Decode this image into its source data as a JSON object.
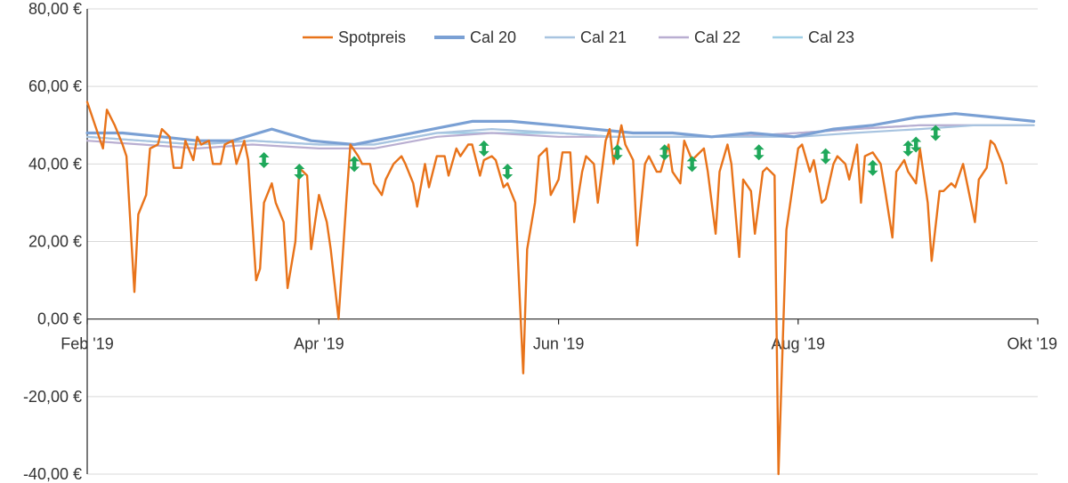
{
  "chart_data": {
    "type": "line",
    "ylim": [
      -40,
      80
    ],
    "xlim": [
      "2019-02-01",
      "2019-10-01"
    ],
    "y_ticks": [
      {
        "value": -40,
        "label": "-40,00 €"
      },
      {
        "value": -20,
        "label": "-20,00 €"
      },
      {
        "value": 0,
        "label": "0,00 €"
      },
      {
        "value": 20,
        "label": "20,00 €"
      },
      {
        "value": 40,
        "label": "40,00 €"
      },
      {
        "value": 60,
        "label": "60,00 €"
      },
      {
        "value": 80,
        "label": "80,00 €"
      }
    ],
    "x_ticks": [
      {
        "date": "2019-02-01",
        "label": "Feb '19"
      },
      {
        "date": "2019-04-01",
        "label": "Apr '19"
      },
      {
        "date": "2019-06-01",
        "label": "Jun '19"
      },
      {
        "date": "2019-08-01",
        "label": "Aug '19"
      },
      {
        "date": "2019-10-01",
        "label": "Okt '19"
      }
    ],
    "grid": "horizontal",
    "legend_position": "top-center",
    "series": [
      {
        "name": "Spotpreis",
        "color": "#e8731a",
        "points": [
          [
            "2019-02-01",
            56
          ],
          [
            "2019-02-03",
            50
          ],
          [
            "2019-02-05",
            44
          ],
          [
            "2019-02-06",
            54
          ],
          [
            "2019-02-08",
            50
          ],
          [
            "2019-02-10",
            45
          ],
          [
            "2019-02-11",
            42
          ],
          [
            "2019-02-13",
            7
          ],
          [
            "2019-02-14",
            27
          ],
          [
            "2019-02-16",
            32
          ],
          [
            "2019-02-17",
            44
          ],
          [
            "2019-02-19",
            45
          ],
          [
            "2019-02-20",
            49
          ],
          [
            "2019-02-22",
            47
          ],
          [
            "2019-02-23",
            39
          ],
          [
            "2019-02-25",
            39
          ],
          [
            "2019-02-26",
            46
          ],
          [
            "2019-02-28",
            41
          ],
          [
            "2019-03-01",
            47
          ],
          [
            "2019-03-02",
            45
          ],
          [
            "2019-03-04",
            46
          ],
          [
            "2019-03-05",
            40
          ],
          [
            "2019-03-07",
            40
          ],
          [
            "2019-03-08",
            45
          ],
          [
            "2019-03-10",
            46
          ],
          [
            "2019-03-11",
            40
          ],
          [
            "2019-03-13",
            46
          ],
          [
            "2019-03-14",
            41
          ],
          [
            "2019-03-16",
            10
          ],
          [
            "2019-03-17",
            13
          ],
          [
            "2019-03-18",
            30
          ],
          [
            "2019-03-20",
            35
          ],
          [
            "2019-03-21",
            30
          ],
          [
            "2019-03-23",
            25
          ],
          [
            "2019-03-24",
            8
          ],
          [
            "2019-03-26",
            20
          ],
          [
            "2019-03-27",
            39
          ],
          [
            "2019-03-29",
            37
          ],
          [
            "2019-03-30",
            18
          ],
          [
            "2019-04-01",
            32
          ],
          [
            "2019-04-03",
            25
          ],
          [
            "2019-04-04",
            18
          ],
          [
            "2019-04-06",
            0
          ],
          [
            "2019-04-08",
            31
          ],
          [
            "2019-04-09",
            45
          ],
          [
            "2019-04-11",
            42
          ],
          [
            "2019-04-12",
            40
          ],
          [
            "2019-04-14",
            40
          ],
          [
            "2019-04-15",
            35
          ],
          [
            "2019-04-17",
            32
          ],
          [
            "2019-04-18",
            36
          ],
          [
            "2019-04-20",
            40
          ],
          [
            "2019-04-22",
            42
          ],
          [
            "2019-04-23",
            40
          ],
          [
            "2019-04-25",
            35
          ],
          [
            "2019-04-26",
            29
          ],
          [
            "2019-04-28",
            40
          ],
          [
            "2019-04-29",
            34
          ],
          [
            "2019-05-01",
            42
          ],
          [
            "2019-05-03",
            42
          ],
          [
            "2019-05-04",
            37
          ],
          [
            "2019-05-06",
            44
          ],
          [
            "2019-05-07",
            42
          ],
          [
            "2019-05-09",
            45
          ],
          [
            "2019-05-10",
            45
          ],
          [
            "2019-05-12",
            37
          ],
          [
            "2019-05-13",
            41
          ],
          [
            "2019-05-15",
            42
          ],
          [
            "2019-05-16",
            41
          ],
          [
            "2019-05-18",
            34
          ],
          [
            "2019-05-19",
            35
          ],
          [
            "2019-05-21",
            30
          ],
          [
            "2019-05-23",
            -14
          ],
          [
            "2019-05-24",
            18
          ],
          [
            "2019-05-26",
            30
          ],
          [
            "2019-05-27",
            42
          ],
          [
            "2019-05-29",
            44
          ],
          [
            "2019-05-30",
            32
          ],
          [
            "2019-06-01",
            36
          ],
          [
            "2019-06-02",
            43
          ],
          [
            "2019-06-04",
            43
          ],
          [
            "2019-06-05",
            25
          ],
          [
            "2019-06-07",
            38
          ],
          [
            "2019-06-08",
            42
          ],
          [
            "2019-06-10",
            40
          ],
          [
            "2019-06-11",
            30
          ],
          [
            "2019-06-13",
            46
          ],
          [
            "2019-06-14",
            49
          ],
          [
            "2019-06-15",
            40
          ],
          [
            "2019-06-17",
            50
          ],
          [
            "2019-06-18",
            45
          ],
          [
            "2019-06-20",
            41
          ],
          [
            "2019-06-21",
            19
          ],
          [
            "2019-06-23",
            40
          ],
          [
            "2019-06-24",
            42
          ],
          [
            "2019-06-26",
            38
          ],
          [
            "2019-06-27",
            38
          ],
          [
            "2019-06-29",
            45
          ],
          [
            "2019-06-30",
            38
          ],
          [
            "2019-07-02",
            35
          ],
          [
            "2019-07-03",
            46
          ],
          [
            "2019-07-05",
            41
          ],
          [
            "2019-07-06",
            42
          ],
          [
            "2019-07-08",
            44
          ],
          [
            "2019-07-09",
            38
          ],
          [
            "2019-07-11",
            22
          ],
          [
            "2019-07-12",
            38
          ],
          [
            "2019-07-14",
            45
          ],
          [
            "2019-07-15",
            40
          ],
          [
            "2019-07-17",
            16
          ],
          [
            "2019-07-18",
            36
          ],
          [
            "2019-07-20",
            33
          ],
          [
            "2019-07-21",
            22
          ],
          [
            "2019-07-23",
            38
          ],
          [
            "2019-07-24",
            39
          ],
          [
            "2019-07-26",
            37
          ],
          [
            "2019-07-27",
            -40
          ],
          [
            "2019-07-29",
            23
          ],
          [
            "2019-07-30",
            30
          ],
          [
            "2019-08-01",
            44
          ],
          [
            "2019-08-02",
            45
          ],
          [
            "2019-08-04",
            38
          ],
          [
            "2019-08-05",
            41
          ],
          [
            "2019-08-07",
            30
          ],
          [
            "2019-08-08",
            31
          ],
          [
            "2019-08-10",
            40
          ],
          [
            "2019-08-11",
            42
          ],
          [
            "2019-08-13",
            40
          ],
          [
            "2019-08-14",
            36
          ],
          [
            "2019-08-16",
            45
          ],
          [
            "2019-08-17",
            30
          ],
          [
            "2019-08-18",
            42
          ],
          [
            "2019-08-20",
            43
          ],
          [
            "2019-08-22",
            40
          ],
          [
            "2019-08-23",
            34
          ],
          [
            "2019-08-25",
            21
          ],
          [
            "2019-08-26",
            38
          ],
          [
            "2019-08-28",
            41
          ],
          [
            "2019-08-29",
            38
          ],
          [
            "2019-08-31",
            35
          ],
          [
            "2019-09-01",
            44
          ],
          [
            "2019-09-03",
            30
          ],
          [
            "2019-09-04",
            15
          ],
          [
            "2019-09-06",
            33
          ],
          [
            "2019-09-07",
            33
          ],
          [
            "2019-09-09",
            35
          ],
          [
            "2019-09-10",
            34
          ],
          [
            "2019-09-12",
            40
          ],
          [
            "2019-09-13",
            35
          ],
          [
            "2019-09-15",
            25
          ],
          [
            "2019-09-16",
            36
          ],
          [
            "2019-09-18",
            39
          ],
          [
            "2019-09-19",
            46
          ],
          [
            "2019-09-20",
            45
          ],
          [
            "2019-09-22",
            40
          ],
          [
            "2019-09-23",
            35
          ]
        ]
      },
      {
        "name": "Cal 20",
        "color": "#7aa0d4",
        "points": [
          [
            "2019-02-01",
            48
          ],
          [
            "2019-02-10",
            48
          ],
          [
            "2019-02-20",
            47
          ],
          [
            "2019-03-01",
            46
          ],
          [
            "2019-03-10",
            46
          ],
          [
            "2019-03-20",
            49
          ],
          [
            "2019-03-30",
            46
          ],
          [
            "2019-04-10",
            45
          ],
          [
            "2019-04-20",
            47
          ],
          [
            "2019-04-30",
            49
          ],
          [
            "2019-05-10",
            51
          ],
          [
            "2019-05-20",
            51
          ],
          [
            "2019-05-31",
            50
          ],
          [
            "2019-06-10",
            49
          ],
          [
            "2019-06-20",
            48
          ],
          [
            "2019-06-30",
            48
          ],
          [
            "2019-07-10",
            47
          ],
          [
            "2019-07-20",
            48
          ],
          [
            "2019-07-31",
            47
          ],
          [
            "2019-08-10",
            49
          ],
          [
            "2019-08-20",
            50
          ],
          [
            "2019-08-31",
            52
          ],
          [
            "2019-09-10",
            53
          ],
          [
            "2019-09-20",
            52
          ],
          [
            "2019-09-30",
            51
          ]
        ]
      },
      {
        "name": "Cal 21",
        "color": "#a8c4e0",
        "points": [
          [
            "2019-02-01",
            47
          ],
          [
            "2019-02-15",
            46
          ],
          [
            "2019-03-01",
            45
          ],
          [
            "2019-03-15",
            46
          ],
          [
            "2019-04-01",
            45
          ],
          [
            "2019-04-15",
            45
          ],
          [
            "2019-05-01",
            48
          ],
          [
            "2019-05-15",
            49
          ],
          [
            "2019-06-01",
            48
          ],
          [
            "2019-06-15",
            47
          ],
          [
            "2019-07-01",
            47
          ],
          [
            "2019-07-15",
            47
          ],
          [
            "2019-08-01",
            47
          ],
          [
            "2019-08-15",
            48
          ],
          [
            "2019-09-01",
            49
          ],
          [
            "2019-09-15",
            50
          ],
          [
            "2019-09-30",
            50
          ]
        ]
      },
      {
        "name": "Cal 22",
        "color": "#b9aed1",
        "points": [
          [
            "2019-02-01",
            46
          ],
          [
            "2019-02-15",
            45
          ],
          [
            "2019-03-01",
            44
          ],
          [
            "2019-03-15",
            45
          ],
          [
            "2019-04-01",
            44
          ],
          [
            "2019-04-15",
            44
          ],
          [
            "2019-05-01",
            47
          ],
          [
            "2019-05-15",
            48
          ],
          [
            "2019-06-01",
            47
          ],
          [
            "2019-06-15",
            47
          ],
          [
            "2019-07-01",
            47
          ],
          [
            "2019-07-15",
            47
          ],
          [
            "2019-08-01",
            48
          ],
          [
            "2019-08-15",
            49
          ],
          [
            "2019-09-01",
            50
          ],
          [
            "2019-09-15",
            50
          ],
          [
            "2019-09-30",
            50
          ]
        ]
      },
      {
        "name": "Cal 23",
        "color": "#9fcfe6",
        "points": [
          [
            "2019-02-01",
            47
          ],
          [
            "2019-02-15",
            46
          ],
          [
            "2019-03-01",
            45
          ],
          [
            "2019-03-15",
            46
          ],
          [
            "2019-04-01",
            45
          ],
          [
            "2019-04-15",
            45
          ],
          [
            "2019-05-01",
            48
          ],
          [
            "2019-05-15",
            48
          ],
          [
            "2019-06-01",
            48
          ],
          [
            "2019-06-15",
            47
          ],
          [
            "2019-07-01",
            47
          ],
          [
            "2019-07-15",
            47
          ],
          [
            "2019-08-01",
            48
          ],
          [
            "2019-08-15",
            49
          ],
          [
            "2019-09-01",
            50
          ],
          [
            "2019-09-15",
            50
          ],
          [
            "2019-09-30",
            50
          ]
        ]
      }
    ],
    "annotations": {
      "type": "double-arrow",
      "color": "#1fa85a",
      "points": [
        [
          "2019-03-18",
          41
        ],
        [
          "2019-03-27",
          38
        ],
        [
          "2019-04-10",
          40
        ],
        [
          "2019-05-13",
          44
        ],
        [
          "2019-05-19",
          38
        ],
        [
          "2019-06-16",
          43
        ],
        [
          "2019-06-28",
          43
        ],
        [
          "2019-07-05",
          40
        ],
        [
          "2019-07-22",
          43
        ],
        [
          "2019-08-08",
          42
        ],
        [
          "2019-08-20",
          39
        ],
        [
          "2019-08-29",
          44
        ],
        [
          "2019-09-05",
          48
        ],
        [
          "2019-08-31",
          45
        ]
      ]
    }
  }
}
